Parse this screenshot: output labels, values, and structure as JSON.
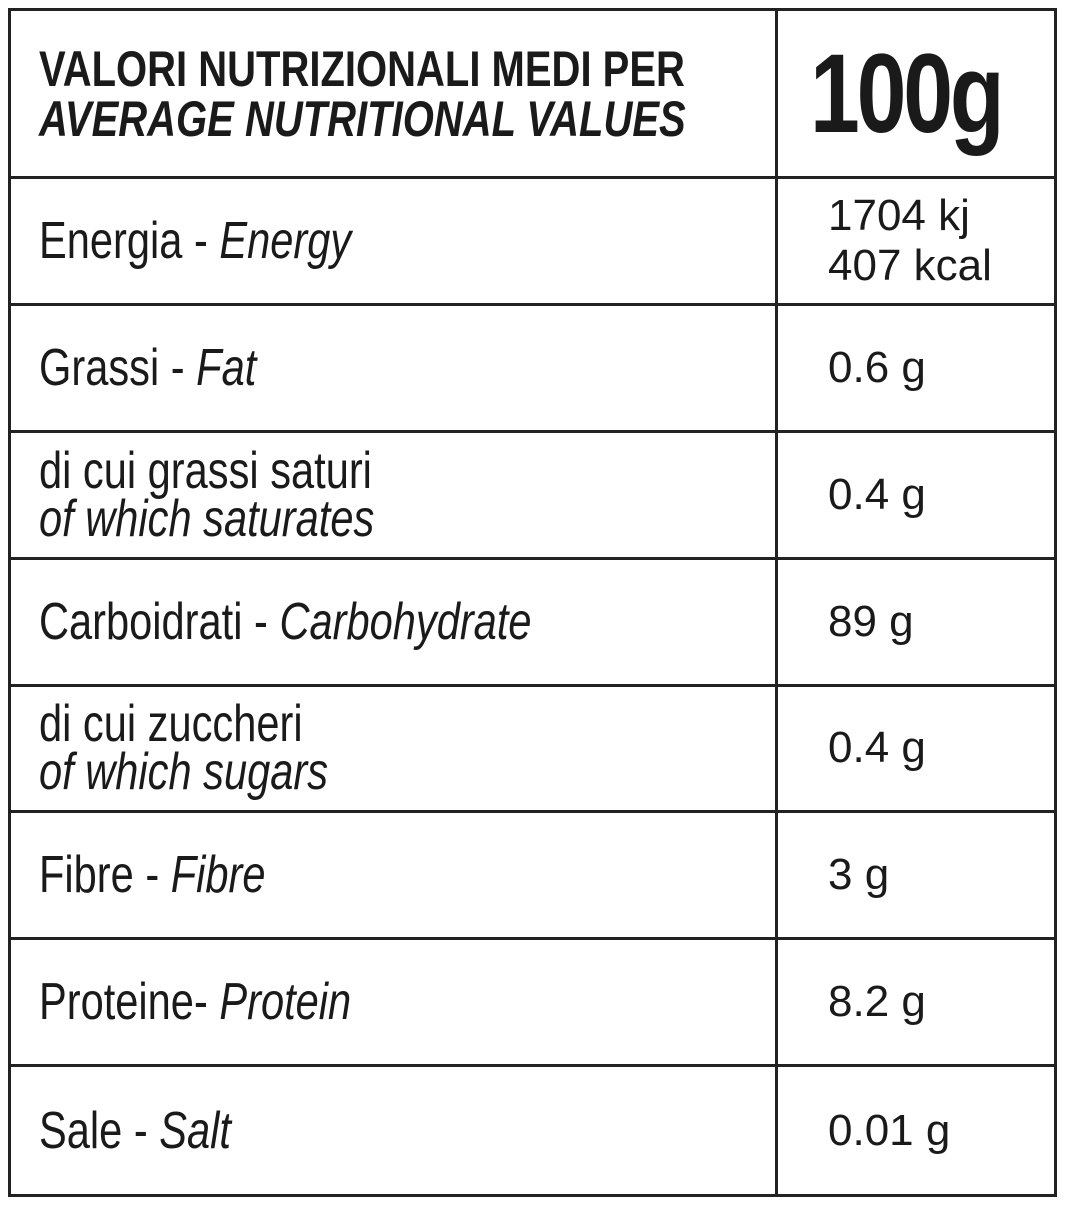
{
  "header": {
    "title_it": "VALORI NUTRIZIONALI MEDI PER",
    "title_en": "AVERAGE NUTRITIONAL VALUES",
    "amount": "100g"
  },
  "rows": [
    {
      "label_it": "Energia -",
      "label_en": "Energy",
      "values": [
        "1704 kj",
        "407 kcal"
      ]
    },
    {
      "label_it": "Grassi -",
      "label_en": "Fat",
      "values": [
        "0.6 g"
      ]
    },
    {
      "label_it": "di cui grassi saturi",
      "label_en": "of which saturates",
      "values": [
        "0.4 g"
      ]
    },
    {
      "label_it": "Carboidrati -",
      "label_en": "Carbohydrate",
      "values": [
        "89 g"
      ]
    },
    {
      "label_it": "di cui zuccheri",
      "label_en": "of which sugars",
      "values": [
        "0.4 g"
      ]
    },
    {
      "label_it": "Fibre -",
      "label_en": "Fibre",
      "values": [
        "3 g"
      ]
    },
    {
      "label_it": "Proteine-",
      "label_en": "Protein",
      "values": [
        "8.2 g"
      ]
    },
    {
      "label_it": "Sale -",
      "label_en": "Salt",
      "values": [
        "0.01 g"
      ]
    }
  ]
}
